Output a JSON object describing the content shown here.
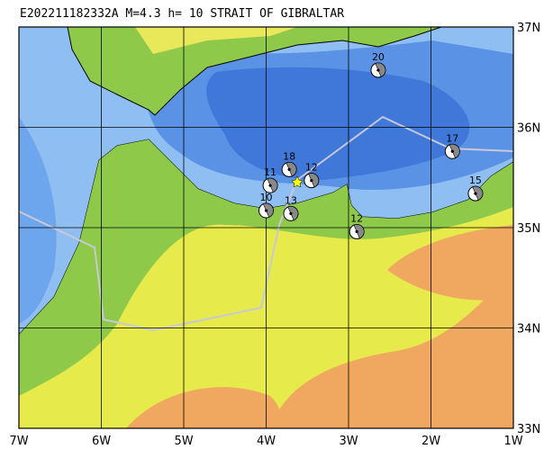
{
  "map": {
    "title": "E202211182332A M=4.3 h= 10 STRAIT OF GIBRALTAR",
    "lon_ticks": [
      {
        "value": -7,
        "label": "7W"
      },
      {
        "value": -6,
        "label": "6W"
      },
      {
        "value": -5,
        "label": "5W"
      },
      {
        "value": -4,
        "label": "4W"
      },
      {
        "value": -3,
        "label": "3W"
      },
      {
        "value": -2,
        "label": "2W"
      },
      {
        "value": -1,
        "label": "1W"
      }
    ],
    "lat_ticks": [
      {
        "value": 37,
        "label": "37N"
      },
      {
        "value": 36,
        "label": "36N"
      },
      {
        "value": 35,
        "label": "35N"
      },
      {
        "value": 34,
        "label": "34N"
      },
      {
        "value": 33,
        "label": "33N"
      }
    ],
    "events": [
      {
        "label": "20",
        "lon": -2.64,
        "lat": 36.57
      },
      {
        "label": "17",
        "lon": -1.74,
        "lat": 35.76
      },
      {
        "label": "15",
        "lon": -1.46,
        "lat": 35.34
      },
      {
        "label": "12",
        "lon": -2.9,
        "lat": 34.96
      },
      {
        "label": "13",
        "lon": -3.7,
        "lat": 35.14
      },
      {
        "label": "10",
        "lon": -4.0,
        "lat": 35.17
      },
      {
        "label": "11",
        "lon": -3.95,
        "lat": 35.42
      },
      {
        "label": "18",
        "lon": -3.72,
        "lat": 35.58
      },
      {
        "label": "12",
        "lon": -3.45,
        "lat": 35.47
      }
    ]
  }
}
